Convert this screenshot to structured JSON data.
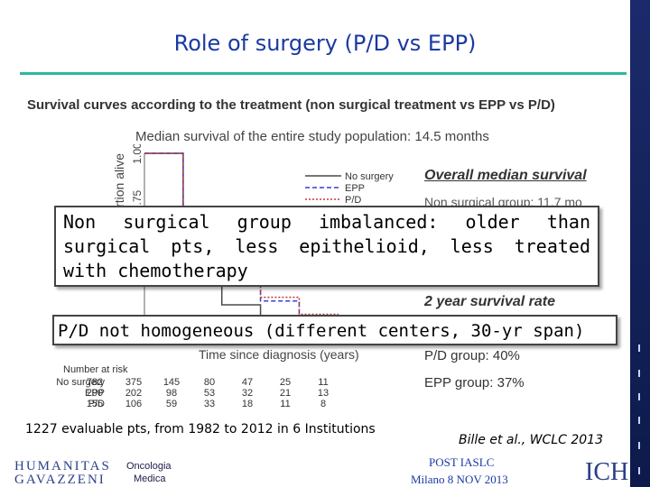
{
  "slide": {
    "title": "Role of surgery (P/D vs EPP)",
    "figure_heading": "Survival curves according to the treatment (non surgical treatment vs EPP vs P/D)",
    "median_note": "Median survival of the entire study population:  14.5 months",
    "overlay_box_text": "Non surgical group imbalanced: older than surgical pts, less epithelioid, less treated with chemotherapy",
    "pd_box_text": "P/D not homogeneous (different centers, 30-yr span)",
    "evaluable_text": "1227 evaluable pts, from 1982 to 2012 in 6 Institutions",
    "citation": "Bille et al., WCLC 2013",
    "post_iaslc": "POST IASLC",
    "milano_date": "Milano 8 NOV 2013",
    "logo_humanitas_line1": "HUMANITAS",
    "logo_humanitas_line2": "GAVAZZENI",
    "logo_oncologia_line1": "Oncologia",
    "logo_oncologia_line2": "Medica",
    "logo_icch": "ICH"
  },
  "right_panel": {
    "overall_title": "Overall median survival",
    "nonsurgical_line": "Non surgical group: 11.7 mo",
    "two_year_title": "2 year survival rate",
    "pd_group": "P/D group: 40%",
    "epp_group": "EPP group: 37%"
  },
  "chart_data": {
    "type": "line",
    "ylabel": "Proportion alive",
    "xlabel": "Time since diagnosis (years)",
    "ylim": [
      0,
      1
    ],
    "ytick_labels": [
      "1.00",
      "0.75",
      "0"
    ],
    "series": [
      {
        "name": "No surgery",
        "color": "#4a4a4a",
        "dash": "",
        "x": [
          0,
          1,
          2,
          3,
          4,
          5,
          6,
          7
        ],
        "y": [
          1.0,
          0.45,
          0.2,
          0.1,
          0.06,
          0.04,
          0.03,
          0.02
        ]
      },
      {
        "name": "EPP",
        "color": "#3b3bd6",
        "dash": "5,3",
        "x": [
          0,
          1,
          2,
          3,
          4,
          5,
          6,
          7
        ],
        "y": [
          1.0,
          0.7,
          0.37,
          0.22,
          0.14,
          0.1,
          0.08,
          0.06
        ]
      },
      {
        "name": "P/D",
        "color": "#c03a3a",
        "dash": "2,2",
        "x": [
          0,
          1,
          2,
          3,
          4,
          5,
          6,
          7
        ],
        "y": [
          1.0,
          0.72,
          0.4,
          0.24,
          0.15,
          0.11,
          0.09,
          0.07
        ]
      }
    ],
    "risk_table": {
      "title": "Number at risk",
      "rows": [
        {
          "label": "No surgery",
          "values": [
            "782",
            "375",
            "145",
            "80",
            "47",
            "25",
            "11"
          ]
        },
        {
          "label": "EPP",
          "values": [
            "290",
            "202",
            "98",
            "53",
            "32",
            "21",
            "13"
          ]
        },
        {
          "label": "P/D",
          "values": [
            "155",
            "106",
            "59",
            "33",
            "18",
            "11",
            "8"
          ]
        }
      ]
    }
  }
}
